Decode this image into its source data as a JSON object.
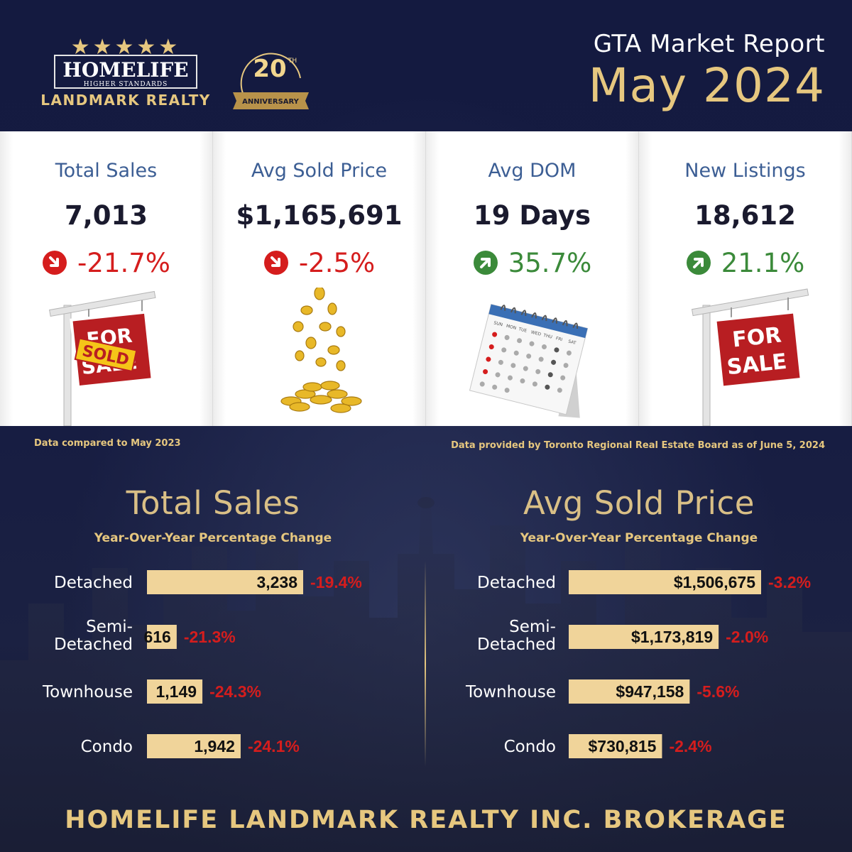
{
  "header": {
    "logo_stars": "★★★★★",
    "logo_brand": "HOMELIFE",
    "logo_tagline": "HIGHER STANDARDS",
    "logo_company": "LANDMARK REALTY",
    "anniversary_number": "20",
    "anniversary_suffix": "TH",
    "anniversary_label": "ANNIVERSARY",
    "report_title": "GTA Market Report",
    "report_date": "May 2024"
  },
  "stats": [
    {
      "label": "Total Sales",
      "value": "7,013",
      "change": "-21.7%",
      "direction": "down",
      "illustration": "sold-sign"
    },
    {
      "label": "Avg Sold Price",
      "value": "$1,165,691",
      "change": "-2.5%",
      "direction": "down",
      "illustration": "gold-coins"
    },
    {
      "label": "Avg DOM",
      "value": "19 Days",
      "change": "35.7%",
      "direction": "up",
      "illustration": "calendar"
    },
    {
      "label": "New Listings",
      "value": "18,612",
      "change": "21.1%",
      "direction": "up",
      "illustration": "for-sale-sign"
    }
  ],
  "illustration_text": {
    "sign_for": "FOR",
    "sign_sale": "SALE",
    "sign_sold": "SOLD",
    "calendar_days": [
      "SUN",
      "MON",
      "TUE",
      "WED",
      "THU",
      "FRI",
      "SAT"
    ]
  },
  "notes": {
    "left": "Data compared to May 2023",
    "right": "Data provided by Toronto Regional Real Estate Board as of  June 5, 2024"
  },
  "colors": {
    "background": "#151a3e",
    "gold": "#e6c77f",
    "bar_fill": "#f0d49a",
    "negative": "#d51d1d",
    "positive": "#3b8a3a",
    "label_blue": "#3c5e94"
  },
  "chart_data": [
    {
      "type": "bar",
      "orientation": "horizontal",
      "title": "Total Sales",
      "subtitle": "Year-Over-Year Percentage Change",
      "categories": [
        "Detached",
        "Semi-\nDetached",
        "Townhouse",
        "Condo"
      ],
      "values": [
        3238,
        616,
        1149,
        1942
      ],
      "value_labels": [
        "3,238",
        "616",
        "1,149",
        "1,942"
      ],
      "changes": [
        "-19.4%",
        "-21.3%",
        "-24.3%",
        "-24.1%"
      ],
      "xlim": [
        0,
        3238
      ]
    },
    {
      "type": "bar",
      "orientation": "horizontal",
      "title": "Avg Sold Price",
      "subtitle": "Year-Over-Year Percentage Change",
      "categories": [
        "Detached",
        "Semi-\nDetached",
        "Townhouse",
        "Condo"
      ],
      "values": [
        1506675,
        1173819,
        947158,
        730815
      ],
      "value_labels": [
        "$1,506,675",
        "$1,173,819",
        "$947,158",
        "$730,815"
      ],
      "changes": [
        "-3.2%",
        "-2.0%",
        "-5.6%",
        "-2.4%"
      ],
      "xlim": [
        0,
        1506675
      ]
    }
  ],
  "footer": "HOMELIFE LANDMARK REALTY INC. BROKERAGE"
}
